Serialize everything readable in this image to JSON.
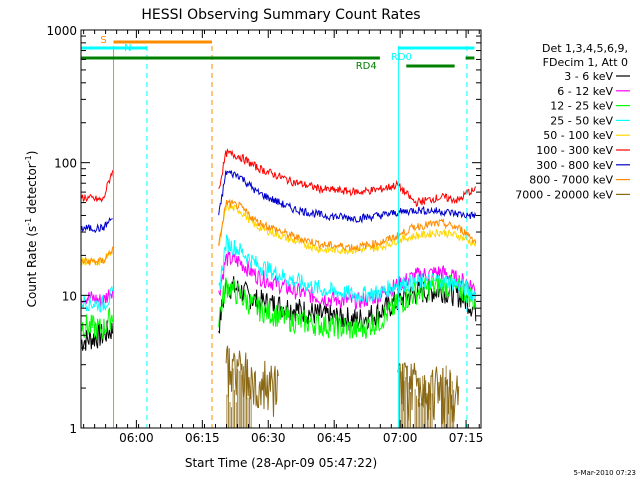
{
  "chart_data": {
    "type": "line",
    "title": "HESSI Observing Summary Count Rates",
    "xlabel": "Start Time (28-Apr-09 05:47:22)",
    "ylabel_main": "Count Rate (s",
    "ylabel_sup1": "-1",
    "ylabel_mid": " detector",
    "ylabel_sup2": "-1",
    "ylabel_end": ")",
    "footer": "5-Mar-2010 07:23",
    "y_scale": "log",
    "ylim": [
      1,
      1000
    ],
    "xlim_minutes": [
      0,
      91
    ],
    "x_ticks": [
      {
        "m": 12.6,
        "label": "06:00"
      },
      {
        "m": 27.6,
        "label": "06:15"
      },
      {
        "m": 42.6,
        "label": "06:30"
      },
      {
        "m": 57.6,
        "label": "06:45"
      },
      {
        "m": 72.6,
        "label": "07:00"
      },
      {
        "m": 87.6,
        "label": "07:15"
      }
    ],
    "y_ticks": [
      {
        "v": 1,
        "label": "1"
      },
      {
        "v": 10,
        "label": "10"
      },
      {
        "v": 100,
        "label": "100"
      },
      {
        "v": 1000,
        "label": "1000"
      }
    ],
    "legend": {
      "header1": "Det 1,3,4,5,6,9,",
      "header2": "FDecim 1, Att 0",
      "placement": "right"
    },
    "series": [
      {
        "name": "3 - 6 keV",
        "color": "#000000",
        "v": [
          [
            0,
            4.5
          ],
          [
            5,
            5
          ],
          [
            7,
            5.5
          ],
          [
            31,
            5
          ],
          [
            33,
            12
          ],
          [
            36,
            11
          ],
          [
            40,
            9
          ],
          [
            48,
            8
          ],
          [
            55,
            7
          ],
          [
            63,
            6.5
          ],
          [
            68,
            7.5
          ],
          [
            72,
            9
          ],
          [
            76,
            10.5
          ],
          [
            82,
            11
          ],
          [
            86,
            10
          ],
          [
            88,
            9
          ],
          [
            90,
            7.5
          ]
        ]
      },
      {
        "name": "6 - 12 keV",
        "color": "#ff00ff",
        "v": [
          [
            0,
            10
          ],
          [
            5,
            9
          ],
          [
            7,
            11
          ],
          [
            31,
            9
          ],
          [
            33,
            19
          ],
          [
            36,
            18
          ],
          [
            40,
            14
          ],
          [
            48,
            11
          ],
          [
            55,
            9.5
          ],
          [
            63,
            9
          ],
          [
            68,
            10
          ],
          [
            72,
            12
          ],
          [
            76,
            14
          ],
          [
            82,
            15
          ],
          [
            86,
            13
          ],
          [
            88,
            12.5
          ],
          [
            90,
            11
          ]
        ]
      },
      {
        "name": "12 - 25 keV",
        "color": "#00ff00",
        "v": [
          [
            0,
            6
          ],
          [
            5,
            5.5
          ],
          [
            7,
            7
          ],
          [
            31,
            6
          ],
          [
            33,
            12
          ],
          [
            36,
            10
          ],
          [
            40,
            8
          ],
          [
            48,
            6.5
          ],
          [
            55,
            6
          ],
          [
            63,
            5.5
          ],
          [
            68,
            6.5
          ],
          [
            72,
            8.5
          ],
          [
            76,
            10.5
          ],
          [
            82,
            12
          ],
          [
            86,
            11
          ],
          [
            88,
            10.5
          ],
          [
            90,
            8.5
          ]
        ]
      },
      {
        "name": "25 - 50 keV",
        "color": "#00ffff",
        "v": [
          [
            0,
            9
          ],
          [
            5,
            8.5
          ],
          [
            7,
            10
          ],
          [
            31,
            9
          ],
          [
            33,
            25
          ],
          [
            36,
            22
          ],
          [
            40,
            17
          ],
          [
            48,
            13
          ],
          [
            55,
            11
          ],
          [
            63,
            10
          ],
          [
            68,
            10.5
          ],
          [
            72,
            12
          ],
          [
            76,
            12.5
          ],
          [
            82,
            13
          ],
          [
            86,
            12
          ],
          [
            88,
            11
          ],
          [
            90,
            10
          ]
        ]
      },
      {
        "name": "50 - 100 keV",
        "color": "#ffd700",
        "v": [
          [
            0,
            18
          ],
          [
            5,
            18
          ],
          [
            7,
            22
          ],
          [
            31,
            20
          ],
          [
            33,
            47
          ],
          [
            36,
            44
          ],
          [
            40,
            33
          ],
          [
            48,
            26
          ],
          [
            55,
            22
          ],
          [
            63,
            22
          ],
          [
            68,
            23
          ],
          [
            72,
            26
          ],
          [
            76,
            28
          ],
          [
            82,
            30
          ],
          [
            86,
            28
          ],
          [
            88,
            26
          ],
          [
            90,
            24
          ]
        ]
      },
      {
        "name": "100 - 300 keV",
        "color": "#ff0000",
        "v": [
          [
            0,
            55
          ],
          [
            5,
            52
          ],
          [
            7,
            85
          ],
          [
            31,
            55
          ],
          [
            33,
            118
          ],
          [
            36,
            112
          ],
          [
            40,
            92
          ],
          [
            48,
            72
          ],
          [
            55,
            63
          ],
          [
            63,
            60
          ],
          [
            68,
            63
          ],
          [
            72,
            68
          ],
          [
            76,
            50
          ],
          [
            82,
            55
          ],
          [
            86,
            52
          ],
          [
            88,
            60
          ],
          [
            90,
            62
          ]
        ]
      },
      {
        "name": "300 - 800 keV",
        "color": "#0000cc",
        "v": [
          [
            0,
            32
          ],
          [
            5,
            32
          ],
          [
            7,
            38
          ],
          [
            31,
            34
          ],
          [
            33,
            85
          ],
          [
            36,
            80
          ],
          [
            40,
            60
          ],
          [
            48,
            45
          ],
          [
            55,
            40
          ],
          [
            63,
            38
          ],
          [
            68,
            40
          ],
          [
            72,
            42
          ],
          [
            76,
            44
          ],
          [
            82,
            43
          ],
          [
            86,
            41
          ],
          [
            88,
            40
          ],
          [
            90,
            40
          ]
        ]
      },
      {
        "name": "800 - 7000 keV",
        "color": "#ff8c00",
        "v": [
          [
            0,
            18
          ],
          [
            5,
            18
          ],
          [
            7,
            22
          ],
          [
            31,
            20
          ],
          [
            33,
            50
          ],
          [
            36,
            47
          ],
          [
            40,
            36
          ],
          [
            48,
            28
          ],
          [
            55,
            24
          ],
          [
            63,
            23
          ],
          [
            68,
            25
          ],
          [
            72,
            28
          ],
          [
            76,
            33
          ],
          [
            82,
            35
          ],
          [
            86,
            32
          ],
          [
            88,
            29
          ],
          [
            90,
            25
          ]
        ]
      },
      {
        "name": "7000 - 20000 keV",
        "color": "#8b6914",
        "v": [
          [
            33,
            3
          ],
          [
            36,
            2.5
          ],
          [
            40,
            1.9
          ],
          [
            72,
            2
          ],
          [
            76,
            2
          ],
          [
            82,
            1.8
          ],
          [
            86,
            1.5
          ]
        ]
      }
    ],
    "markers": [
      {
        "label": "S",
        "color": "#ff8c00"
      },
      {
        "label": "N",
        "color": "#00ffff"
      },
      {
        "label": "RD0",
        "color": "#00ffff"
      },
      {
        "label": "RD4",
        "color": "#008000"
      }
    ]
  }
}
